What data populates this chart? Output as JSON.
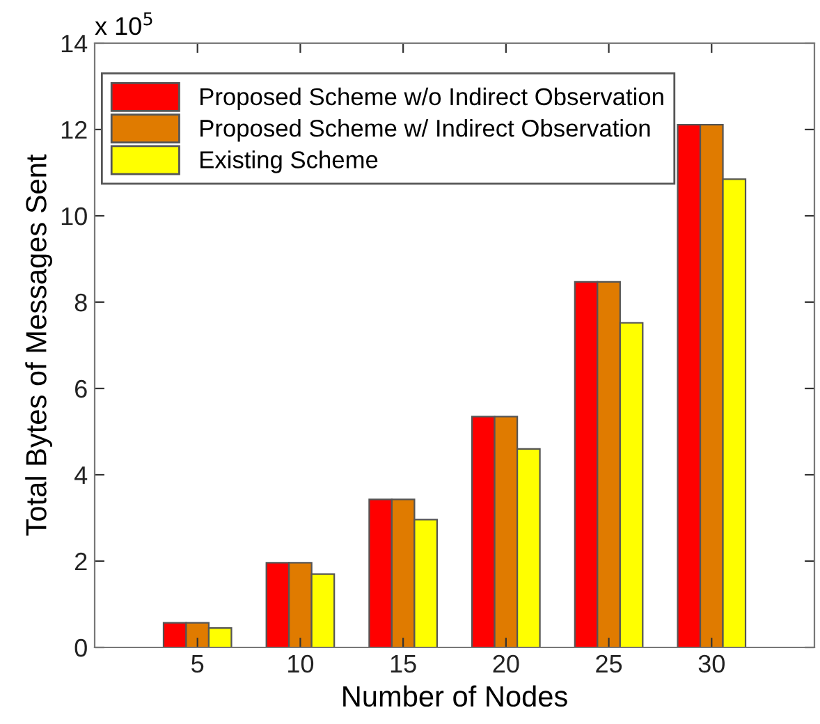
{
  "chart_data": {
    "type": "bar",
    "xlabel": "Number of Nodes",
    "ylabel": "Total Bytes of Messages Sent",
    "categories": [
      "5",
      "10",
      "15",
      "20",
      "25",
      "30"
    ],
    "series": [
      {
        "name": "Proposed Scheme w/o Indirect Observation",
        "color": "#ff0000",
        "values": [
          0.57,
          1.96,
          3.43,
          5.35,
          8.47,
          12.11
        ]
      },
      {
        "name": "Proposed Scheme w/ Indirect Observation",
        "color": "#e07b00",
        "values": [
          0.57,
          1.96,
          3.43,
          5.35,
          8.47,
          12.11
        ]
      },
      {
        "name": "Existing Scheme",
        "color": "#ffff00",
        "values": [
          0.45,
          1.7,
          2.96,
          4.6,
          7.52,
          10.85
        ]
      }
    ],
    "ylim": [
      0,
      14
    ],
    "yticks": [
      0,
      2,
      4,
      6,
      8,
      10,
      12,
      14
    ],
    "annotations": [
      "x 10$^{5}$"
    ],
    "legend": "top left",
    "grid": false
  }
}
